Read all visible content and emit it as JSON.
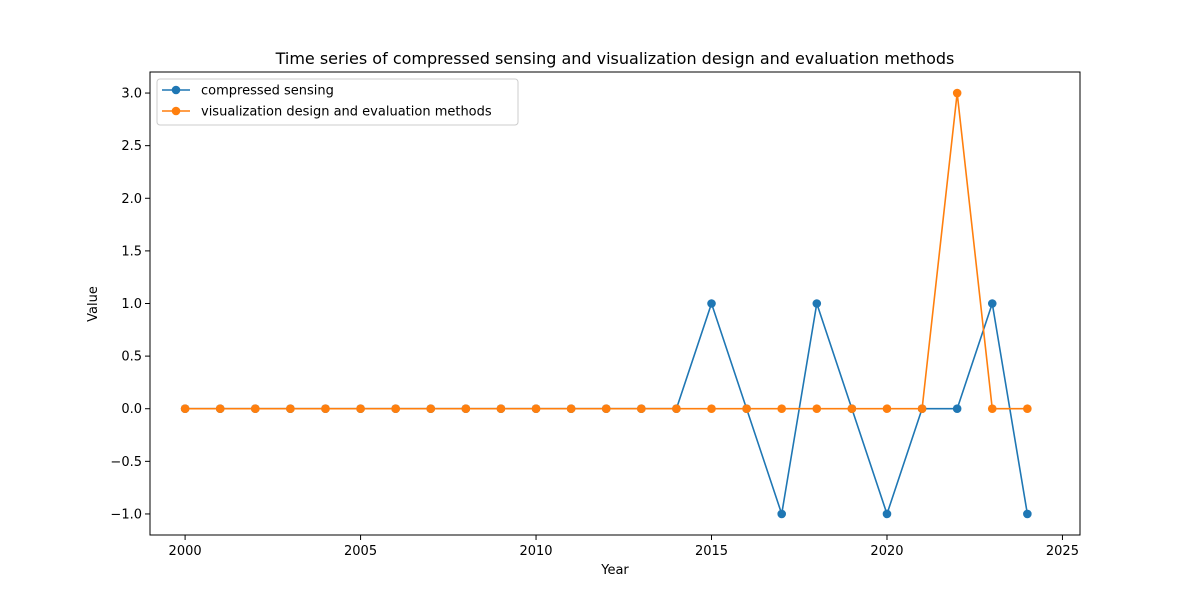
{
  "chart_data": {
    "type": "line",
    "title": "Time series of compressed sensing and visualization design and evaluation methods",
    "xlabel": "Year",
    "ylabel": "Value",
    "x": [
      2000,
      2001,
      2002,
      2003,
      2004,
      2005,
      2006,
      2007,
      2008,
      2009,
      2010,
      2011,
      2012,
      2013,
      2014,
      2015,
      2016,
      2017,
      2018,
      2019,
      2020,
      2021,
      2022,
      2023,
      2024
    ],
    "xlim": [
      1999,
      2025.5
    ],
    "ylim": [
      -1.2,
      3.2
    ],
    "xticks": [
      2000,
      2005,
      2010,
      2015,
      2020,
      2025
    ],
    "xtick_labels": [
      "2000",
      "2005",
      "2010",
      "2015",
      "2020",
      "2025"
    ],
    "yticks": [
      -1.0,
      -0.5,
      0.0,
      0.5,
      1.0,
      1.5,
      2.0,
      2.5,
      3.0
    ],
    "ytick_labels": [
      "−1.0",
      "−0.5",
      "0.0",
      "0.5",
      "1.0",
      "1.5",
      "2.0",
      "2.5",
      "3.0"
    ],
    "grid": false,
    "legend_position": "top-left",
    "series": [
      {
        "name": "compressed sensing",
        "color": "#1f77b4",
        "values": [
          0,
          0,
          0,
          0,
          0,
          0,
          0,
          0,
          0,
          0,
          0,
          0,
          0,
          0,
          0,
          1,
          0,
          -1,
          1,
          0,
          -1,
          0,
          0,
          1,
          -1
        ]
      },
      {
        "name": "visualization design and evaluation methods",
        "color": "#ff7f0e",
        "values": [
          0,
          0,
          0,
          0,
          0,
          0,
          0,
          0,
          0,
          0,
          0,
          0,
          0,
          0,
          0,
          0,
          0,
          0,
          0,
          0,
          0,
          0,
          3,
          0,
          0
        ]
      }
    ]
  }
}
